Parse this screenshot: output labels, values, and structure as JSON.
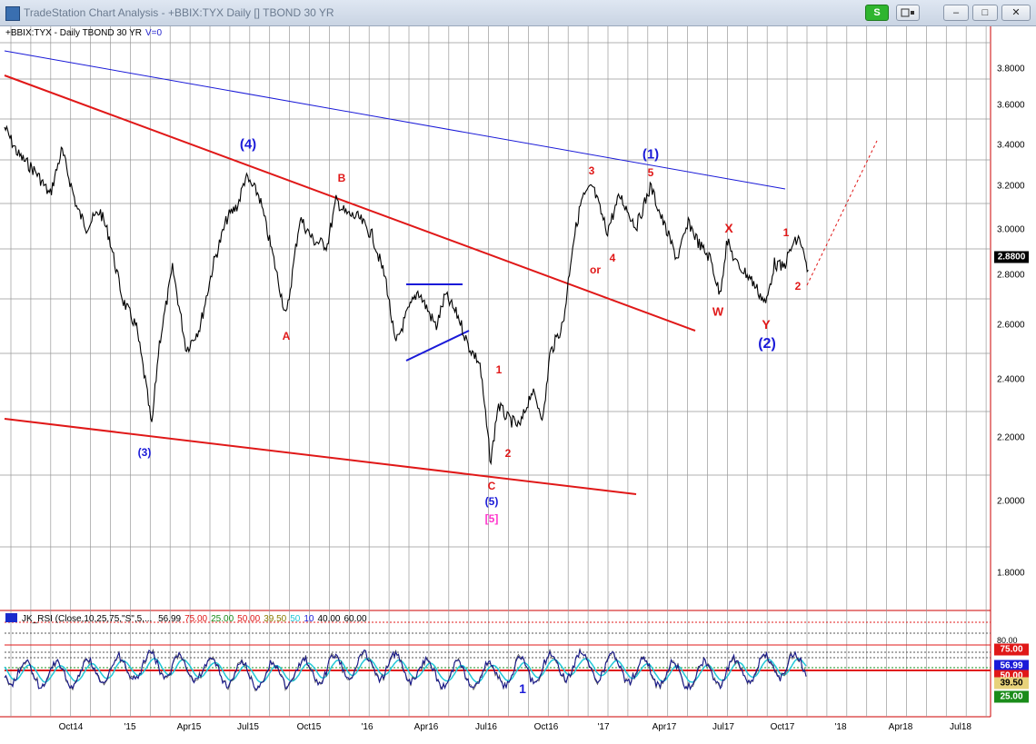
{
  "window": {
    "title": "TradeStation Chart Analysis - +BBIX:TYX Daily [] TBOND 30 YR",
    "s_button": "S",
    "min_glyph": "–",
    "max_glyph": "□",
    "close_glyph": "✕"
  },
  "chart": {
    "symbol_line": "+BBIX:TYX - Daily  TBOND 30 YR",
    "volume_text": "V=0",
    "price_axis": [
      "3.8000",
      "3.6000",
      "3.4000",
      "3.2000",
      "3.0000",
      "2.8000",
      "2.6000",
      "2.4000",
      "2.2000",
      "2.0000",
      "1.8000"
    ],
    "last_price": "2.8800",
    "time_axis": [
      "Oct14",
      "'15",
      "Apr15",
      "Jul15",
      "Oct15",
      "'16",
      "Apr16",
      "Jul16",
      "Oct16",
      "'17",
      "Apr17",
      "Jul17",
      "Oct17",
      "'18",
      "Apr18",
      "Jul18"
    ],
    "wave_labels": {
      "w4_top": "(4)",
      "w3_low": "(3)",
      "A": "A",
      "B": "B",
      "C": "C",
      "w5": "(5)",
      "w5_mag": "[5]",
      "sub1": "1",
      "sub2": "2",
      "sub3": "3",
      "or": "or",
      "sub4": "4",
      "sub5": "5",
      "w1": "(1)",
      "X": "X",
      "W": "W",
      "Y": "Y",
      "w2": "(2)",
      "new1": "1",
      "new2": "2",
      "rsi_1": "1"
    },
    "colors": {
      "price": "#000000",
      "trend_red": "#e01818",
      "trend_blue": "#1a1ad8",
      "grid": "#999999",
      "rsi_dark": "#1a1a8c",
      "rsi_light": "#22c8d8"
    }
  },
  "indicator": {
    "name": "JK_RSI (Close,10,25,75,\"S\",5,...",
    "values": [
      {
        "text": "56.99",
        "color": "#000000"
      },
      {
        "text": "75.00",
        "color": "#e01818"
      },
      {
        "text": "25.00",
        "color": "#1a8c1a"
      },
      {
        "text": "50.00",
        "color": "#e01818"
      },
      {
        "text": "39.50",
        "color": "#8a7a00"
      },
      {
        "text": "50",
        "color": "#22c8d8"
      },
      {
        "text": "10",
        "color": "#1a1ad8"
      },
      {
        "text": "40.00",
        "color": "#000000"
      },
      {
        "text": "60.00",
        "color": "#000000"
      }
    ],
    "axis": {
      "t80": "80.00",
      "t75": "75.00",
      "t5699": "56.99",
      "t50": "50.00",
      "t3950": "39.50",
      "t25": "25.00"
    }
  }
}
